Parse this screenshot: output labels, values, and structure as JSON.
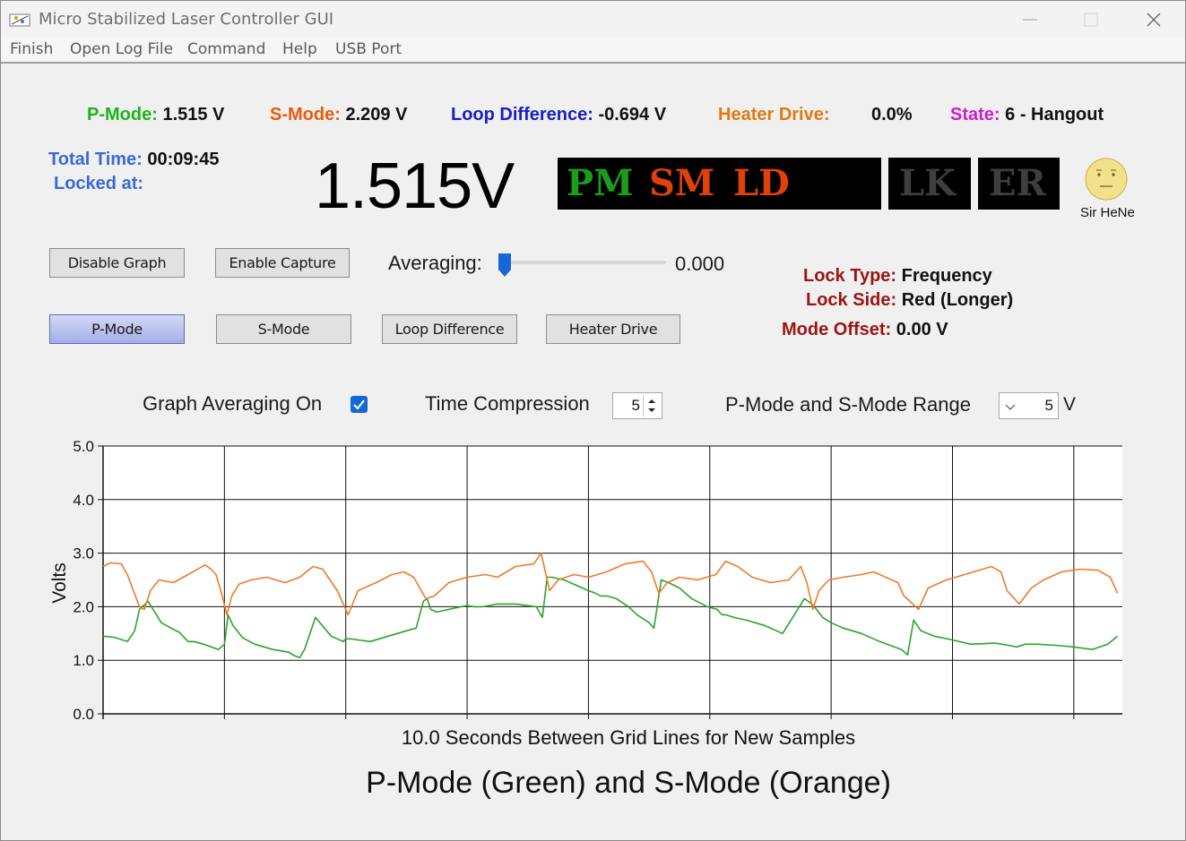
{
  "window": {
    "title": "Micro Stabilized Laser Controller GUI"
  },
  "menu": [
    "Finish",
    "Open Log File",
    "Command",
    "Help",
    "USB Port"
  ],
  "status": {
    "pmode_label": "P-Mode:",
    "pmode_value": "1.515 V",
    "smode_label": "S-Mode:",
    "smode_value": "2.209 V",
    "loop_label": "Loop Difference:",
    "loop_value": "-0.694 V",
    "heater_label": "Heater Drive:",
    "heater_value": "0.0%",
    "state_label": "State:",
    "state_value": "6 - Hangout"
  },
  "time": {
    "total_label": "Total Time:",
    "total_value": "00:09:45",
    "locked_label": "Locked at:"
  },
  "big_readout": "1.515V",
  "indicators": {
    "pm": "PM",
    "sm": "SM",
    "ld": "LD",
    "lk": "LK",
    "er": "ER",
    "mascot_label": "Sir HeNe"
  },
  "buttons": {
    "disable_graph": "Disable Graph",
    "enable_capture": "Enable Capture",
    "pmode": "P-Mode",
    "smode": "S-Mode",
    "loop_difference": "Loop Difference",
    "heater_drive": "Heater Drive"
  },
  "averaging": {
    "label": "Averaging:",
    "value": "0.000",
    "slider_fraction": 0.0
  },
  "lock": {
    "type_label": "Lock Type:",
    "type_value": "Frequency",
    "side_label": "Lock Side:",
    "side_value": "Red (Longer)",
    "offset_label": "Mode Offset:",
    "offset_value": "0.00 V"
  },
  "options": {
    "graph_averaging_label": "Graph Averaging On",
    "graph_averaging_checked": true,
    "time_compression_label": "Time Compression",
    "time_compression_value": "5",
    "range_label": "P-Mode and S-Mode Range",
    "range_value": "5",
    "range_unit": "V"
  },
  "colors": {
    "pmode": "#1bb51b",
    "smode": "#e85a0c",
    "loop": "#1b1bc8",
    "heater": "#e07a10",
    "state": "#c81fc8",
    "time": "#3a6ad6",
    "lock_key": "#9b1414",
    "trace_green": "#2aa52a",
    "trace_orange": "#f07a2a"
  },
  "chart_data": {
    "type": "line",
    "xlabel": "10.0 Seconds Between Grid Lines for New Samples",
    "ylabel": "Volts",
    "title": "P-Mode (Green) and S-Mode (Orange)",
    "ylim": [
      0,
      5
    ],
    "yticks": [
      "0.0",
      "1.0",
      "2.0",
      "3.0",
      "4.0",
      "5.0"
    ],
    "grid": true,
    "series": [
      {
        "name": "P-Mode",
        "color": "#2aa52a",
        "x": [
          0,
          0.9,
          2.0,
          2.6,
          3.0,
          3.7,
          4.8,
          5.6,
          6.3,
          6.7,
          7.0,
          7.5,
          8.3,
          9.5,
          10.0,
          10.3,
          10.7,
          11.5,
          12.5,
          14.0,
          15.3,
          15.8,
          16.2,
          16.6,
          17.5,
          18.8,
          19.8,
          20.0,
          20.4,
          21.0,
          22.0,
          23.5,
          25.0,
          25.8,
          26.4,
          26.7,
          27.0,
          27.5,
          28.5,
          29.5,
          30.0,
          30.6,
          31.3,
          32.5,
          34.0,
          35.7,
          36.2,
          36.6,
          37.0,
          38.0,
          39.0,
          40.0,
          40.6,
          41.0,
          41.5,
          42.3,
          43.3,
          44.0,
          45.0,
          45.4,
          46.0,
          46.6,
          47.5,
          48.5,
          49.8,
          50.6,
          51.0,
          51.3,
          52.0,
          53.0,
          54.5,
          56.0,
          57.8,
          58.4,
          58.8,
          59.3,
          60.0,
          61.0,
          62.5,
          64.0,
          65.8,
          66.3,
          66.8,
          67.4,
          68.5,
          70.0,
          71.5,
          73.5,
          74.6,
          75.3,
          76.0,
          77.0,
          78.5,
          80.0,
          81.5,
          82.8,
          83.6
        ],
        "values": [
          1.45,
          1.43,
          1.35,
          1.55,
          1.95,
          2.1,
          1.7,
          1.6,
          1.52,
          1.42,
          1.35,
          1.35,
          1.3,
          1.2,
          1.3,
          1.85,
          1.65,
          1.42,
          1.3,
          1.2,
          1.15,
          1.08,
          1.05,
          1.2,
          1.8,
          1.45,
          1.35,
          1.4,
          1.4,
          1.38,
          1.35,
          1.45,
          1.55,
          1.6,
          2.1,
          2.15,
          1.95,
          1.9,
          1.95,
          2.0,
          2.02,
          2.0,
          2.0,
          2.05,
          2.05,
          2.0,
          1.8,
          2.55,
          2.55,
          2.5,
          2.4,
          2.3,
          2.25,
          2.2,
          2.2,
          2.15,
          2.0,
          1.85,
          1.7,
          1.6,
          2.5,
          2.45,
          2.35,
          2.15,
          2.0,
          1.95,
          1.85,
          1.85,
          1.8,
          1.75,
          1.65,
          1.5,
          2.15,
          2.05,
          1.95,
          1.8,
          1.7,
          1.6,
          1.5,
          1.35,
          1.2,
          1.1,
          1.75,
          1.55,
          1.45,
          1.38,
          1.3,
          1.32,
          1.28,
          1.25,
          1.3,
          1.3,
          1.28,
          1.25,
          1.2,
          1.3,
          1.45
        ]
      },
      {
        "name": "S-Mode",
        "color": "#f07a2a",
        "x": [
          0,
          0.6,
          1.5,
          2.0,
          2.5,
          3.0,
          3.4,
          3.9,
          4.6,
          5.8,
          7.0,
          8.4,
          8.9,
          9.3,
          9.7,
          10.2,
          10.6,
          11.2,
          12.2,
          13.5,
          15.0,
          16.2,
          17.3,
          18.1,
          19.3,
          20.2,
          21.0,
          22.5,
          23.8,
          24.8,
          25.6,
          26.1,
          26.6,
          27.3,
          28.5,
          30.0,
          31.5,
          32.5,
          34.0,
          35.5,
          36.1,
          36.8,
          37.5,
          38.8,
          40.0,
          41.5,
          43.0,
          44.5,
          45.2,
          45.8,
          46.5,
          47.5,
          49.0,
          50.5,
          51.3,
          52.3,
          53.5,
          55.0,
          56.5,
          57.5,
          58.0,
          58.5,
          59.0,
          59.8,
          61.0,
          62.5,
          63.5,
          64.5,
          65.5,
          66.0,
          66.5,
          67.2,
          68.0,
          69.5,
          71.0,
          72.5,
          73.2,
          74.0,
          74.5,
          75.5,
          76.5,
          77.5,
          79.0,
          80.5,
          82.0,
          83.0,
          83.6
        ],
        "values": [
          2.75,
          2.82,
          2.8,
          2.6,
          2.3,
          2.0,
          1.95,
          2.3,
          2.5,
          2.45,
          2.6,
          2.78,
          2.7,
          2.6,
          2.3,
          1.85,
          2.2,
          2.42,
          2.5,
          2.55,
          2.45,
          2.55,
          2.75,
          2.7,
          2.3,
          1.85,
          2.3,
          2.45,
          2.6,
          2.65,
          2.55,
          2.35,
          2.15,
          2.2,
          2.45,
          2.55,
          2.6,
          2.55,
          2.75,
          2.8,
          3.0,
          2.3,
          2.5,
          2.6,
          2.55,
          2.65,
          2.8,
          2.85,
          2.65,
          2.25,
          2.45,
          2.55,
          2.5,
          2.6,
          2.85,
          2.75,
          2.55,
          2.45,
          2.5,
          2.75,
          2.45,
          1.95,
          2.3,
          2.5,
          2.55,
          2.6,
          2.65,
          2.55,
          2.45,
          2.2,
          2.1,
          1.95,
          2.35,
          2.5,
          2.6,
          2.7,
          2.75,
          2.65,
          2.3,
          2.05,
          2.35,
          2.5,
          2.65,
          2.7,
          2.68,
          2.55,
          2.25
        ]
      }
    ]
  }
}
